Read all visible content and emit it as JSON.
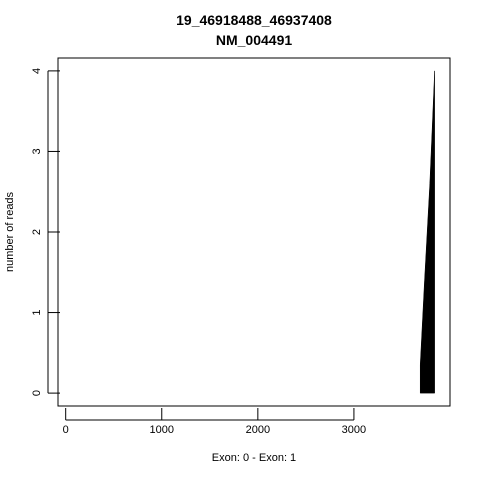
{
  "chart_data": {
    "type": "area",
    "title": "19_46918488_46937408",
    "subtitle": "NM_004491",
    "xlabel": "Exon: 0 - Exon: 1",
    "ylabel": "number of reads",
    "xlim": [
      -80,
      4000
    ],
    "ylim": [
      -0.16,
      4.16
    ],
    "xticks": [
      0,
      1000,
      2000,
      3000
    ],
    "xtick_labels": [
      "0",
      "1000",
      "2000",
      "3000"
    ],
    "yticks": [
      0,
      1,
      2,
      3,
      4
    ],
    "ytick_labels": [
      "0",
      "1",
      "2",
      "3",
      "4"
    ],
    "grid": false,
    "series": [
      {
        "x": [
          3690,
          3690,
          3735,
          3790,
          3840,
          3840
        ],
        "y": [
          0,
          0.35,
          1.4,
          2.6,
          4.0,
          0
        ],
        "color": "#000000"
      }
    ]
  }
}
